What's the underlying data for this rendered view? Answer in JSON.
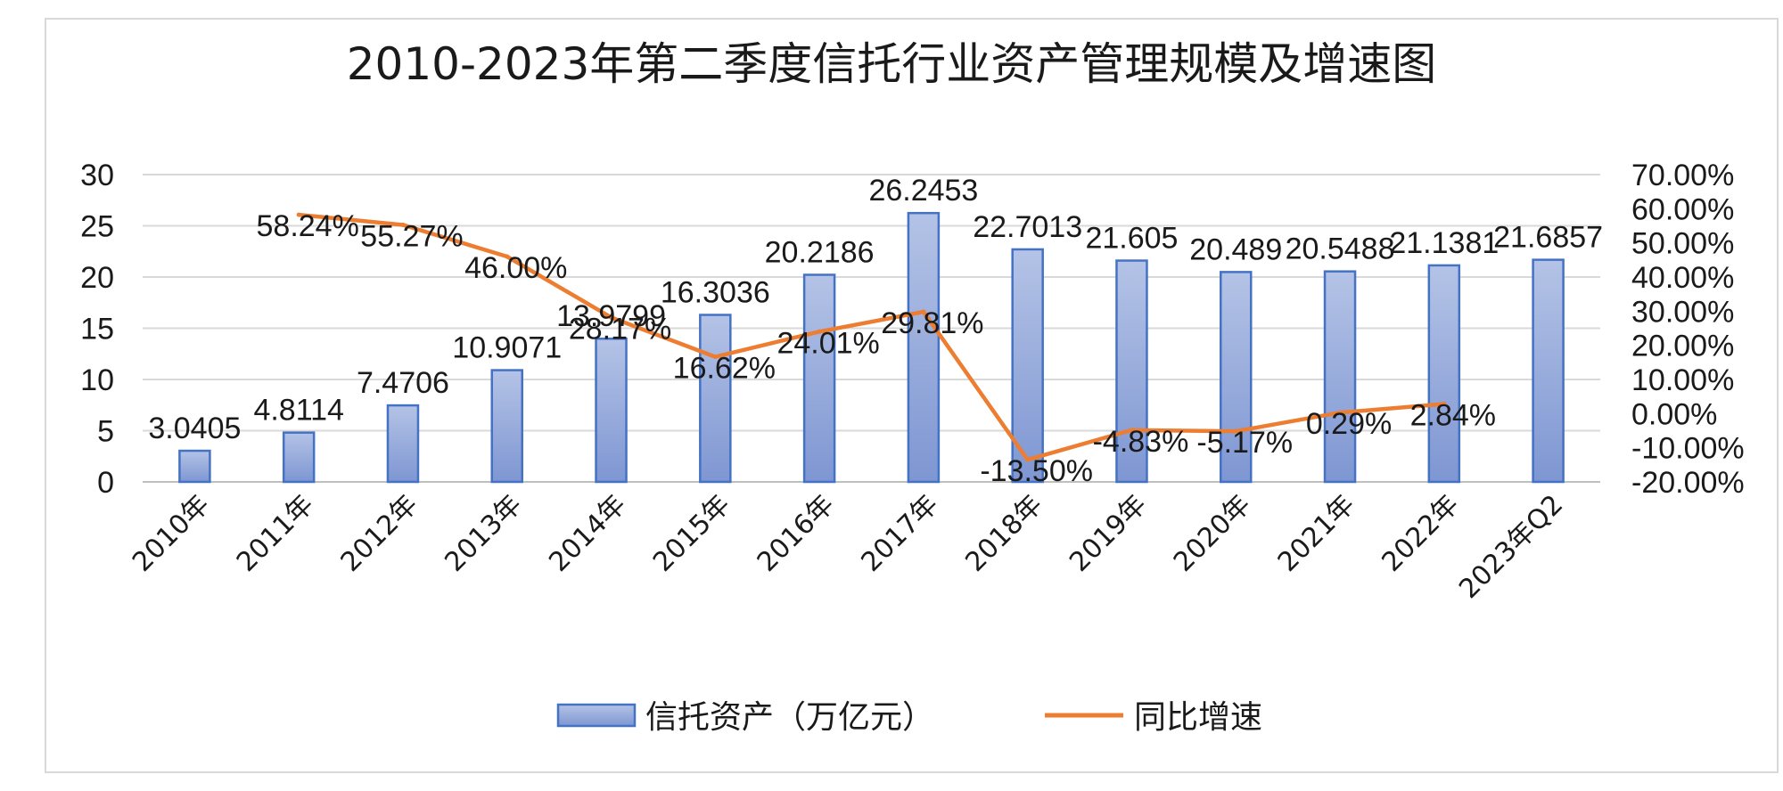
{
  "chart_data": {
    "type": "bar",
    "title": "2010-2023年第二季度信托行业资产管理规模及增速图",
    "categories": [
      "2010年",
      "2011年",
      "2012年",
      "2013年",
      "2014年",
      "2015年",
      "2016年",
      "2017年",
      "2018年",
      "2019年",
      "2020年",
      "2021年",
      "2022年",
      "2023年Q2"
    ],
    "series": [
      {
        "name": "信托资产（万亿元）",
        "type": "bar",
        "axis": "left",
        "values": [
          3.0405,
          4.8114,
          7.4706,
          10.9071,
          13.9799,
          16.3036,
          20.2186,
          26.2453,
          22.7013,
          21.605,
          20.489,
          20.5488,
          21.1381,
          21.6857
        ],
        "labels": [
          "3.0405",
          "4.8114",
          "7.4706",
          "10.9071",
          "13.9799",
          "16.3036",
          "20.2186",
          "26.2453",
          "22.7013",
          "21.605",
          "20.489",
          "20.5488",
          "21.1381",
          "21.6857"
        ],
        "color": "#8fa6d9",
        "border_color": "#4472c4"
      },
      {
        "name": "同比增速",
        "type": "line",
        "axis": "right",
        "values": [
          null,
          58.24,
          55.27,
          46.0,
          28.17,
          16.62,
          24.01,
          29.81,
          -13.5,
          -4.83,
          -5.17,
          0.29,
          2.84,
          null
        ],
        "labels": [
          null,
          "58.24%",
          "55.27%",
          "46.00%",
          "28.17%",
          "16.62%",
          "24.01%",
          "29.81%",
          "-13.50%",
          "-4.83%",
          "-5.17%",
          "0.29%",
          "2.84%",
          null
        ],
        "color": "#ed7d31"
      }
    ],
    "y_left": {
      "min": 0,
      "max": 30,
      "ticks": [
        "0",
        "5",
        "10",
        "15",
        "20",
        "25",
        "30"
      ]
    },
    "y_right": {
      "min": -20,
      "max": 70,
      "ticks": [
        "-20.00%",
        "-10.00%",
        "0.00%",
        "10.00%",
        "20.00%",
        "30.00%",
        "40.00%",
        "50.00%",
        "60.00%",
        "70.00%"
      ]
    },
    "grid": true,
    "legend_position": "bottom"
  }
}
